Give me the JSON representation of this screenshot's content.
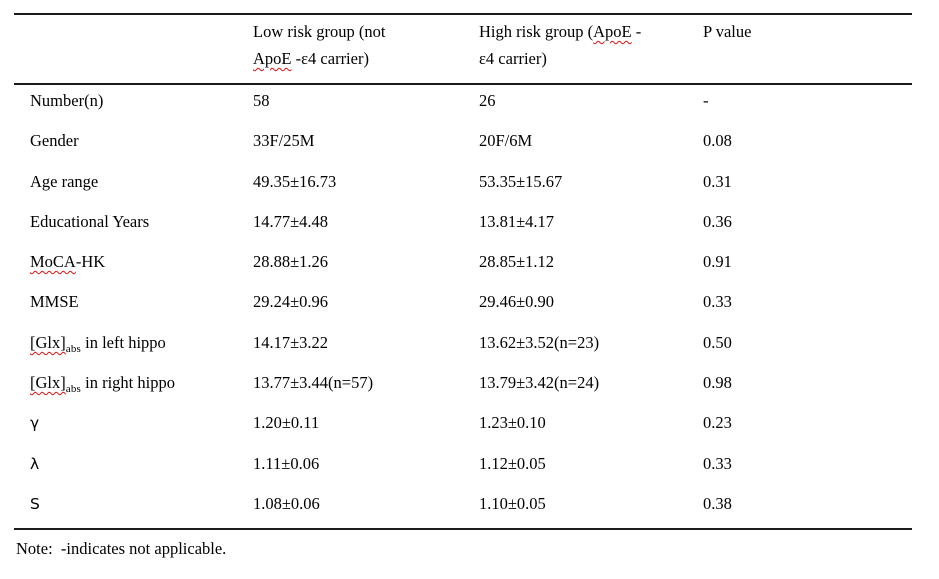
{
  "page": {
    "background": "#ffffff",
    "rule_color": "#1b1b1b",
    "squiggle_color": "#e01010"
  },
  "table": {
    "header": [
      {
        "name": "row-label-column",
        "lines": []
      },
      {
        "name": "low-risk-group-column",
        "lines": [
          [
            {
              "t": "Low risk group (not"
            }
          ],
          [
            {
              "t": "ApoE",
              "s": "misspell"
            },
            {
              "t": " -ε4 carrier)"
            }
          ]
        ]
      },
      {
        "name": "high-risk-group-column",
        "lines": [
          [
            {
              "t": "High risk group ("
            },
            {
              "t": "ApoE",
              "s": "misspell"
            },
            {
              "t": " -"
            }
          ],
          [
            {
              "t": "ε4 carrier)"
            }
          ]
        ]
      },
      {
        "name": "p-value-column",
        "lines": [
          [
            {
              "t": "P value"
            }
          ]
        ]
      }
    ],
    "rows": [
      {
        "label": [
          {
            "t": "Number(n)"
          }
        ],
        "low": "58",
        "high": "26",
        "p": "-"
      },
      {
        "label": [
          {
            "t": "Gender"
          }
        ],
        "low": "33F/25M",
        "high": "20F/6M",
        "p": "0.08"
      },
      {
        "label": [
          {
            "t": "Age range"
          }
        ],
        "low": "49.35±16.73",
        "high": "53.35±15.67",
        "p": "0.31"
      },
      {
        "label": [
          {
            "t": "Educational Years"
          }
        ],
        "low": "14.77±4.48",
        "high": "13.81±4.17",
        "p": "0.36"
      },
      {
        "label": [
          {
            "t": "MoCA",
            "s": "misspell"
          },
          {
            "t": "-HK"
          }
        ],
        "low": "28.88±1.26",
        "high": "28.85±1.12",
        "p": "0.91"
      },
      {
        "label": [
          {
            "t": "MMSE"
          }
        ],
        "low": "29.24±0.96",
        "high": "29.46±0.90",
        "p": "0.33"
      },
      {
        "label": [
          {
            "t": "[Glx]",
            "s": "misspell"
          },
          {
            "t": "abs",
            "s": "sub"
          },
          {
            "t": " in left hippo"
          }
        ],
        "low": "14.17±3.22",
        "high": "13.62±3.52(n=23)",
        "p": "0.50"
      },
      {
        "label": [
          {
            "t": "[Glx]",
            "s": "misspell"
          },
          {
            "t": "abs",
            "s": "sub"
          },
          {
            "t": " in right hippo"
          }
        ],
        "low": "13.77±3.44(n=57)",
        "high": "13.79±3.42(n=24)",
        "p": "0.98"
      },
      {
        "label": [
          {
            "t": "γ",
            "s": "sans"
          }
        ],
        "low": "1.20±0.11",
        "high": "1.23±0.10",
        "p": "0.23"
      },
      {
        "label": [
          {
            "t": "λ",
            "s": "sans"
          }
        ],
        "low": "1.11±0.06",
        "high": "1.12±0.05",
        "p": "0.33"
      },
      {
        "label": [
          {
            "t": "S",
            "s": "sans"
          }
        ],
        "low": "1.08±0.06",
        "high": "1.10±0.05",
        "p": "0.38"
      }
    ]
  },
  "note": "Note:  -indicates not applicable."
}
